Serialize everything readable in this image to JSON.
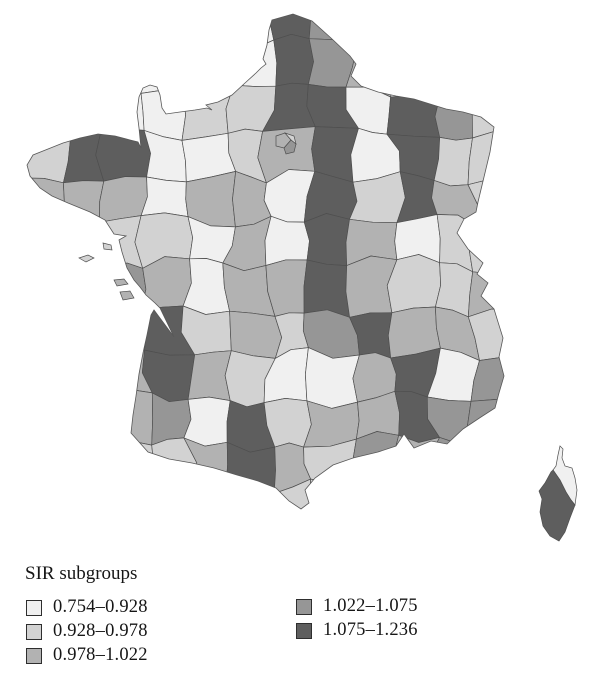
{
  "figure": {
    "background": "#ffffff"
  },
  "legend": {
    "title": "SIR subgroups",
    "entries": [
      {
        "label": "0.754–0.928",
        "color": "#f0f0f0"
      },
      {
        "label": "0.928–0.978",
        "color": "#d2d2d2"
      },
      {
        "label": "0.978–1.022",
        "color": "#b2b2b2"
      },
      {
        "label": "1.022–1.075",
        "color": "#969696"
      },
      {
        "label": "1.075–1.236",
        "color": "#5e5e5e"
      }
    ]
  },
  "map": {
    "department_border_color": "#4f4f4f",
    "coast_border_color": "#585858",
    "class_grid": [
      "111111541111",
      "111111543111",
      "111122551542",
      "255112351522",
      "333133152532",
      "222213153122",
      "234313353223",
      "233523245332",
      "233532113514",
      "223415233544",
      "222235324343",
      "222235223333"
    ],
    "corsica": {
      "north_class": 1,
      "south_class": 5
    },
    "islands": [
      2,
      2,
      3,
      3
    ],
    "paris_cluster": [
      3,
      2,
      4
    ]
  },
  "chart_data": {
    "type": "choropleth",
    "geography": "Metropolitan France départements including Corsica",
    "legend_title": "SIR subgroups",
    "legend_position": "bottom-left",
    "bins": [
      {
        "range": "0.754–0.928",
        "min": 0.754,
        "max": 0.928,
        "color": "#f0f0f0"
      },
      {
        "range": "0.928–0.978",
        "min": 0.928,
        "max": 0.978,
        "color": "#d2d2d2"
      },
      {
        "range": "0.978–1.022",
        "min": 0.978,
        "max": 1.022,
        "color": "#b2b2b2"
      },
      {
        "range": "1.022–1.075",
        "min": 1.022,
        "max": 1.075,
        "color": "#969696"
      },
      {
        "range": "1.075–1.236",
        "min": 1.075,
        "max": 1.236,
        "color": "#5e5e5e"
      }
    ]
  }
}
